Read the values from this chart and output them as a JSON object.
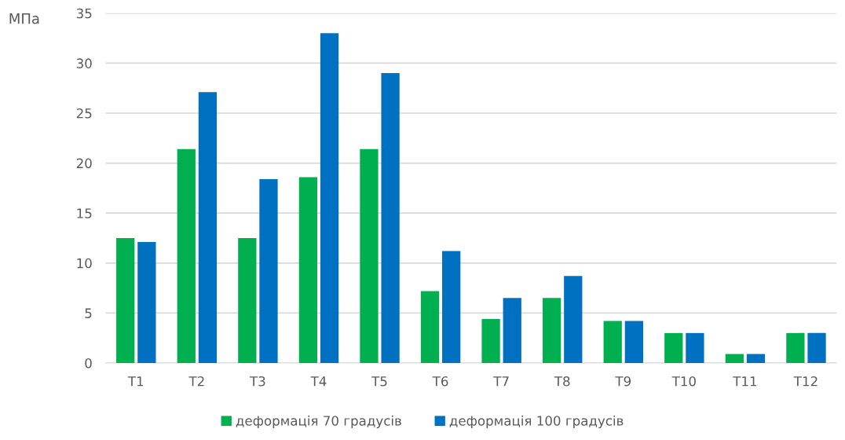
{
  "chart_data": {
    "type": "bar",
    "ylabel": "МПа",
    "categories": [
      "Т1",
      "Т2",
      "Т3",
      "Т4",
      "Т5",
      "Т6",
      "Т7",
      "Т8",
      "Т9",
      "Т10",
      "Т11",
      "Т12"
    ],
    "series": [
      {
        "name": "деформація 70 градусів",
        "color": "#00b050",
        "values": [
          12.5,
          21.4,
          12.5,
          18.6,
          21.4,
          7.2,
          4.4,
          6.5,
          4.2,
          3.0,
          0.9,
          3.0
        ]
      },
      {
        "name": "деформація 100 градусів",
        "color": "#0070c0",
        "values": [
          12.1,
          27.1,
          18.4,
          33.0,
          29.0,
          11.2,
          6.5,
          8.7,
          4.2,
          3.0,
          0.9,
          3.0
        ]
      }
    ],
    "ylim": [
      0,
      35
    ],
    "yticks": [
      0,
      5,
      10,
      15,
      20,
      25,
      30,
      35
    ],
    "grid": "y",
    "legend": "bottom"
  }
}
